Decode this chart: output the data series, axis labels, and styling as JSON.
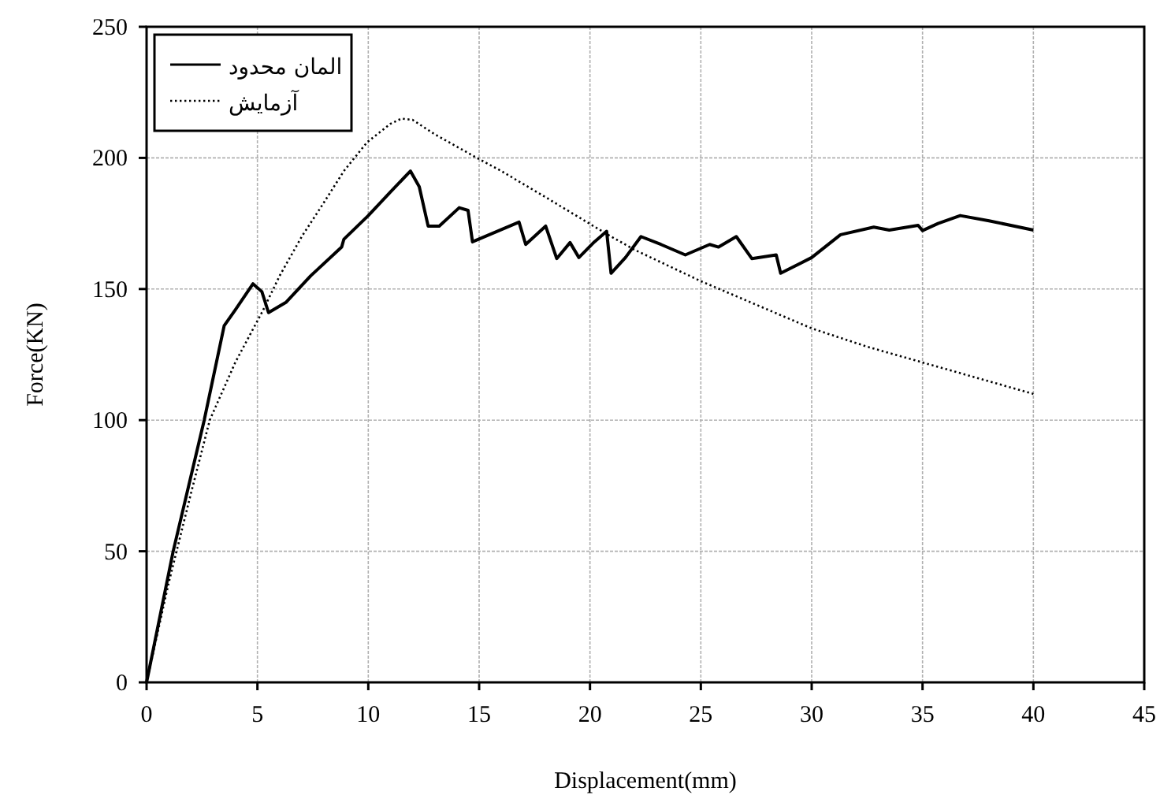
{
  "chart_data": {
    "type": "line",
    "xlabel": "Displacement(mm)",
    "ylabel": "Force(KN)",
    "xlim": [
      0,
      45
    ],
    "ylim": [
      0,
      250
    ],
    "xticks": [
      0,
      5,
      10,
      15,
      20,
      25,
      30,
      35,
      40,
      45
    ],
    "yticks": [
      0,
      50,
      100,
      150,
      200,
      250
    ],
    "grid": true,
    "legend": "top left",
    "marker": "none",
    "series": [
      {
        "name": "المان محدود",
        "color": "#000000",
        "line_style": "solid",
        "x": [
          0,
          1.2,
          2.6,
          3.5,
          4,
          4.8,
          5.2,
          5.5,
          6.3,
          7.4,
          8.8,
          8.9,
          10,
          11,
          11.9,
          12.3,
          12.7,
          13.2,
          14.1,
          14.5,
          14.7,
          16.8,
          17.1,
          18,
          18.5,
          19.1,
          19.5,
          20.2,
          20.75,
          20.95,
          21.6,
          22.3,
          23.2,
          24.3,
          25.4,
          25.8,
          26.6,
          27.3,
          28.4,
          28.6,
          30,
          31.3,
          32.8,
          33.5,
          34.8,
          35,
          35.7,
          36.7,
          38,
          40
        ],
        "values": [
          0,
          50,
          100,
          136,
          142,
          152,
          149,
          141,
          145,
          155,
          166,
          169,
          178,
          187,
          195,
          189,
          174,
          174,
          181,
          180,
          168,
          175.5,
          167,
          174,
          161.6,
          167.7,
          162,
          168,
          172,
          156,
          162,
          170,
          167,
          163,
          167,
          166,
          170,
          161.6,
          163,
          156,
          162,
          170.7,
          173.6,
          172.5,
          174.3,
          172.3,
          175,
          178,
          176,
          172.5
        ]
      },
      {
        "name": "آزمایش",
        "color": "#000000",
        "line_style": "dotted",
        "x": [
          0,
          1,
          2,
          2.85,
          4,
          5.26,
          6,
          7,
          8,
          8.9,
          9.95,
          11,
          11.5,
          12,
          13,
          14.9,
          16,
          18,
          20.75,
          22,
          25,
          27.5,
          30,
          32.5,
          35,
          37.5,
          40
        ],
        "values": [
          0,
          38,
          72,
          100,
          122,
          142,
          155,
          170,
          183,
          195,
          206,
          213,
          215,
          214.5,
          209,
          200,
          195,
          185,
          171,
          165,
          153,
          144,
          135,
          128,
          122,
          116,
          110
        ]
      }
    ]
  }
}
